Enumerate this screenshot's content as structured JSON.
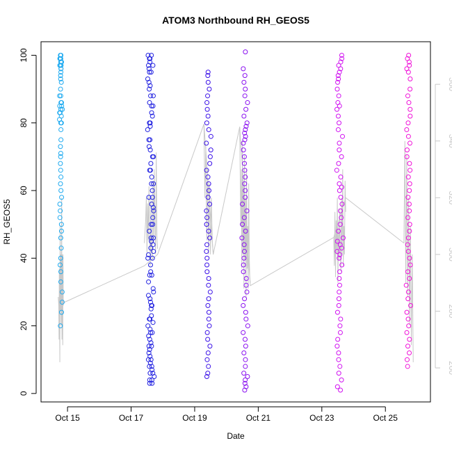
{
  "chart_data": {
    "type": "scatter",
    "title": "ATOM3 Northbound RH_GEOS5",
    "xlabel": "Date",
    "ylabel": "RH_GEOS5",
    "xlim": [
      "Oct 14 04:00",
      "Oct 26 10:00"
    ],
    "ylim": [
      -2.5,
      104
    ],
    "x_ticks": [
      {
        "label": "Oct 15",
        "day": 15
      },
      {
        "label": "Oct 17",
        "day": 17
      },
      {
        "label": "Oct 19",
        "day": 19
      },
      {
        "label": "Oct 21",
        "day": 21
      },
      {
        "label": "Oct 23",
        "day": 23
      },
      {
        "label": "Oct 25",
        "day": 25
      }
    ],
    "y_ticks": [
      0,
      20,
      40,
      60,
      80,
      100
    ],
    "right_axis": {
      "label": "",
      "range": [
        248,
        375
      ],
      "ticks": [
        260,
        280,
        300,
        320,
        340,
        360
      ],
      "color": "#c8c8c8"
    },
    "grid": false,
    "legend": "none",
    "point_colors": {
      "oct14": "#1eaaf0",
      "oct17": "#2020e0",
      "oct19": "#3a10e8",
      "oct20": "#8a10f0",
      "oct23": "#d010f0",
      "oct25": "#f010d8"
    },
    "line_color": "#c8c8c8",
    "flights": [
      {
        "name": "Oct 14",
        "x_start": "Oct 14 17:00",
        "x_end": "Oct 14 21:00",
        "color": "#1eaaf0",
        "rh": [
          100,
          99,
          98,
          97,
          96,
          95,
          93,
          90,
          88,
          86,
          85,
          84,
          83,
          82,
          80,
          78,
          75,
          73,
          71,
          70,
          68,
          66,
          64,
          62,
          60,
          58,
          56,
          54,
          52,
          50,
          48,
          46,
          43,
          40,
          38,
          36,
          33,
          30,
          27,
          24,
          20,
          100,
          99,
          98,
          97,
          97,
          98,
          99,
          98,
          96,
          94,
          92,
          88,
          86,
          85,
          84,
          83,
          81,
          80
        ],
        "alt_path": [
          [
            0,
            285
          ],
          [
            0.1,
            282
          ],
          [
            0.15,
            270
          ],
          [
            0.2,
            295
          ],
          [
            0.3,
            262
          ],
          [
            0.35,
            310
          ],
          [
            0.4,
            280
          ],
          [
            0.5,
            300
          ],
          [
            0.55,
            275
          ],
          [
            0.6,
            305
          ],
          [
            0.65,
            320
          ],
          [
            0.7,
            270
          ],
          [
            0.75,
            300
          ],
          [
            0.8,
            290
          ],
          [
            0.85,
            268
          ],
          [
            0.9,
            300
          ],
          [
            0.95,
            282
          ],
          [
            1,
            284
          ]
        ]
      },
      {
        "name": "Oct 17",
        "x_start": "Oct 17 10:00",
        "x_end": "Oct 17 20:00",
        "color": "#2020e0",
        "rh": [
          100,
          99,
          98,
          97,
          96,
          95,
          93,
          91,
          90,
          88,
          86,
          85,
          83,
          82,
          80,
          79,
          78,
          75,
          73,
          72,
          70,
          68,
          66,
          64,
          62,
          60,
          58,
          56,
          54,
          52,
          50,
          48,
          46,
          45,
          44,
          43,
          42,
          41,
          40,
          38,
          36,
          35,
          33,
          31,
          29,
          28,
          27,
          26,
          25,
          23,
          22,
          21,
          20,
          19,
          18,
          17,
          16,
          15,
          14,
          13,
          12,
          11,
          10,
          9,
          8,
          7,
          6,
          5,
          4,
          3,
          100,
          99,
          97,
          95,
          92,
          88,
          85,
          80,
          75,
          70,
          66,
          62,
          58,
          55,
          50,
          46,
          40,
          35,
          30,
          26,
          22,
          18,
          14,
          10,
          8,
          6,
          4,
          3
        ],
        "alt_path": [
          [
            0,
            304
          ],
          [
            0.1,
            312
          ],
          [
            0.15,
            320
          ],
          [
            0.2,
            300
          ],
          [
            0.25,
            318
          ],
          [
            0.3,
            305
          ],
          [
            0.35,
            324
          ],
          [
            0.4,
            308
          ],
          [
            0.45,
            296
          ],
          [
            0.5,
            320
          ],
          [
            0.55,
            302
          ],
          [
            0.6,
            298
          ],
          [
            0.65,
            326
          ],
          [
            0.7,
            304
          ],
          [
            0.75,
            330
          ],
          [
            0.8,
            310
          ],
          [
            0.85,
            300
          ],
          [
            0.9,
            336
          ],
          [
            0.95,
            306
          ],
          [
            1,
            302
          ]
        ]
      },
      {
        "name": "Oct 19",
        "x_start": "Oct 19 07:00",
        "x_end": "Oct 19 14:00",
        "color": "#3a10e8",
        "rh": [
          95,
          94,
          92,
          90,
          88,
          86,
          84,
          82,
          80,
          78,
          76,
          74,
          72,
          70,
          68,
          66,
          64,
          62,
          60,
          58,
          56,
          54,
          52,
          50,
          48,
          46,
          44,
          42,
          40,
          38,
          36,
          34,
          32,
          30,
          28,
          26,
          24,
          22,
          20,
          18,
          16,
          14,
          12,
          10,
          8,
          6,
          5
        ],
        "alt_path": [
          [
            0,
            346
          ],
          [
            0.1,
            320
          ],
          [
            0.2,
            338
          ],
          [
            0.3,
            305
          ],
          [
            0.4,
            330
          ],
          [
            0.5,
            300
          ],
          [
            0.6,
            325
          ],
          [
            0.7,
            300
          ],
          [
            0.8,
            320
          ],
          [
            0.9,
            305
          ],
          [
            1,
            300
          ]
        ]
      },
      {
        "name": "Oct 20",
        "x_start": "Oct 20 10:00",
        "x_end": "Oct 20 18:00",
        "color": "#8a10f0",
        "rh": [
          101,
          96,
          94,
          92,
          90,
          88,
          86,
          84,
          82,
          80,
          79,
          78,
          77,
          76,
          75,
          74,
          72,
          70,
          68,
          66,
          64,
          62,
          60,
          58,
          56,
          54,
          52,
          50,
          48,
          46,
          44,
          42,
          40,
          38,
          36,
          34,
          32,
          30,
          28,
          26,
          24,
          22,
          20,
          18,
          16,
          14,
          12,
          10,
          8,
          6,
          5,
          4,
          3,
          2,
          1
        ],
        "alt_path": [
          [
            0,
            345
          ],
          [
            0.1,
            310
          ],
          [
            0.15,
            330
          ],
          [
            0.2,
            295
          ],
          [
            0.25,
            340
          ],
          [
            0.3,
            300
          ],
          [
            0.35,
            325
          ],
          [
            0.4,
            288
          ],
          [
            0.45,
            335
          ],
          [
            0.5,
            298
          ],
          [
            0.55,
            320
          ],
          [
            0.6,
            285
          ],
          [
            0.65,
            330
          ],
          [
            0.7,
            295
          ],
          [
            0.75,
            310
          ],
          [
            0.8,
            288
          ],
          [
            0.85,
            325
          ],
          [
            0.9,
            300
          ],
          [
            0.95,
            292
          ],
          [
            1,
            290
          ]
        ]
      },
      {
        "name": "Oct 23",
        "x_start": "Oct 23 09:00",
        "x_end": "Oct 23 18:00",
        "color": "#d010f0",
        "rh": [
          100,
          99,
          98,
          97,
          96,
          95,
          94,
          93,
          92,
          90,
          88,
          86,
          85,
          84,
          82,
          80,
          78,
          76,
          74,
          72,
          70,
          68,
          66,
          64,
          62,
          61,
          60,
          58,
          56,
          54,
          52,
          50,
          48,
          46,
          45,
          44,
          43,
          42,
          41,
          40,
          38,
          36,
          34,
          32,
          30,
          28,
          26,
          24,
          22,
          20,
          18,
          16,
          14,
          12,
          10,
          8,
          6,
          4,
          2,
          1
        ],
        "alt_path": [
          [
            0,
            306
          ],
          [
            0.05,
            296
          ],
          [
            0.1,
            315
          ],
          [
            0.15,
            292
          ],
          [
            0.2,
            312
          ],
          [
            0.25,
            300
          ],
          [
            0.3,
            320
          ],
          [
            0.35,
            290
          ],
          [
            0.4,
            310
          ],
          [
            0.45,
            298
          ],
          [
            0.5,
            316
          ],
          [
            0.55,
            302
          ],
          [
            0.6,
            294
          ],
          [
            0.65,
            320
          ],
          [
            0.7,
            300
          ],
          [
            0.75,
            330
          ],
          [
            0.8,
            296
          ],
          [
            0.85,
            310
          ],
          [
            0.9,
            300
          ],
          [
            0.95,
            326
          ],
          [
            1,
            315
          ]
        ]
      },
      {
        "name": "Oct 25",
        "x_start": "Oct 25 14:00",
        "x_end": "Oct 25 21:00",
        "color": "#f010d8",
        "rh": [
          100,
          99,
          98,
          97,
          96,
          95,
          93,
          90,
          88,
          86,
          84,
          82,
          80,
          78,
          76,
          74,
          72,
          70,
          68,
          66,
          64,
          62,
          60,
          58,
          56,
          54,
          52,
          50,
          48,
          46,
          44,
          42,
          40,
          38,
          36,
          34,
          32,
          30,
          28,
          26,
          24,
          22,
          20,
          18,
          16,
          14,
          12,
          10,
          8
        ],
        "alt_path": [
          [
            0,
            304
          ],
          [
            0.1,
            340
          ],
          [
            0.2,
            290
          ],
          [
            0.3,
            335
          ],
          [
            0.4,
            285
          ],
          [
            0.5,
            320
          ],
          [
            0.6,
            275
          ],
          [
            0.7,
            310
          ],
          [
            0.8,
            268
          ],
          [
            0.9,
            300
          ],
          [
            1,
            262
          ]
        ]
      }
    ],
    "connector_path": [
      [
        "Oct 14 21:00",
        283
      ],
      [
        "Oct 17 10:00",
        296
      ],
      [
        "Oct 17 20:00",
        300
      ],
      [
        "Oct 19 07:00",
        346
      ],
      [
        "Oct 19 14:00",
        300
      ],
      [
        "Oct 20 10:00",
        345
      ],
      [
        "Oct 20 18:00",
        289
      ],
      [
        "Oct 23 09:00",
        306
      ],
      [
        "Oct 23 18:00",
        320
      ],
      [
        "Oct 25 14:00",
        304
      ]
    ]
  }
}
